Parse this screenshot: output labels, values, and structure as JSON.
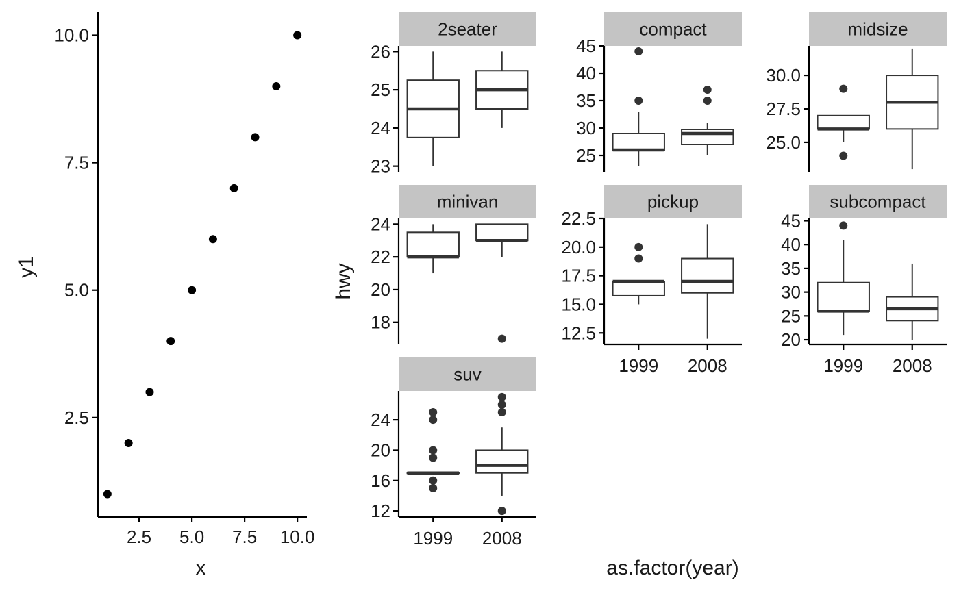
{
  "chart_data": [
    {
      "type": "scatter",
      "xlabel": "x",
      "ylabel": "y1",
      "x": [
        1,
        2,
        3,
        4,
        5,
        6,
        7,
        8,
        9,
        10
      ],
      "y": [
        1,
        2,
        3,
        4,
        5,
        6,
        7,
        8,
        9,
        10
      ],
      "xlim": [
        0.55,
        10.45
      ],
      "ylim": [
        0.55,
        10.45
      ],
      "xticks": [
        2.5,
        5.0,
        7.5,
        10.0
      ],
      "xtick_labels": [
        "2.5",
        "5.0",
        "7.5",
        "10.0"
      ],
      "yticks": [
        2.5,
        5.0,
        7.5,
        10.0
      ],
      "ytick_labels": [
        "2.5",
        "5.0",
        "7.5",
        "10.0"
      ],
      "point_color": "#000000",
      "grid": false
    },
    {
      "type": "box",
      "xlabel": "as.factor(year)",
      "ylabel": "hwy",
      "categories": [
        "1999",
        "2008"
      ],
      "box_color": "#333333",
      "strip_fill": "#c4c4c4",
      "grid": false,
      "facets": [
        {
          "label": "2seater",
          "ylim": [
            22.85,
            26.15
          ],
          "yticks": [
            23,
            24,
            25,
            26
          ],
          "ytick_labels": [
            "23",
            "24",
            "25",
            "26"
          ],
          "boxes": [
            {
              "q1": 23.75,
              "median": 24.5,
              "q3": 25.25,
              "low": 23,
              "high": 26,
              "outliers": []
            },
            {
              "q1": 24.5,
              "median": 25,
              "q3": 25.5,
              "low": 24,
              "high": 26,
              "outliers": []
            }
          ]
        },
        {
          "label": "compact",
          "ylim": [
            22.0,
            45.0
          ],
          "yticks": [
            25,
            30,
            35,
            40,
            45
          ],
          "ytick_labels": [
            "25",
            "30",
            "35",
            "40",
            "45"
          ],
          "boxes": [
            {
              "q1": 26,
              "median": 26,
              "q3": 29,
              "low": 23,
              "high": 33,
              "outliers": [
                35,
                44
              ]
            },
            {
              "q1": 27,
              "median": 29,
              "q3": 29.75,
              "low": 25,
              "high": 31,
              "outliers": [
                35,
                37
              ]
            }
          ]
        },
        {
          "label": "midsize",
          "ylim": [
            22.8,
            32.2
          ],
          "yticks": [
            25.0,
            27.5,
            30.0
          ],
          "ytick_labels": [
            "25.0",
            "27.5",
            "30.0"
          ],
          "boxes": [
            {
              "q1": 26,
              "median": 26,
              "q3": 27,
              "low": 25,
              "high": 27,
              "outliers": [
                24,
                29
              ]
            },
            {
              "q1": 26,
              "median": 28,
              "q3": 30,
              "low": 23,
              "high": 32,
              "outliers": []
            }
          ]
        },
        {
          "label": "minivan",
          "ylim": [
            16.65,
            24.35
          ],
          "yticks": [
            18,
            20,
            22,
            24
          ],
          "ytick_labels": [
            "18",
            "20",
            "22",
            "24"
          ],
          "boxes": [
            {
              "q1": 22,
              "median": 22,
              "q3": 23.5,
              "low": 21,
              "high": 24,
              "outliers": []
            },
            {
              "q1": 23,
              "median": 23,
              "q3": 24,
              "low": 22,
              "high": 24,
              "outliers": [
                17
              ]
            }
          ]
        },
        {
          "label": "pickup",
          "ylim": [
            11.5,
            22.5
          ],
          "yticks": [
            12.5,
            15.0,
            17.5,
            20.0,
            22.5
          ],
          "ytick_labels": [
            "12.5",
            "15.0",
            "17.5",
            "20.0",
            "22.5"
          ],
          "boxes": [
            {
              "q1": 15.75,
              "median": 17,
              "q3": 17,
              "low": 15,
              "high": 17,
              "outliers": [
                19,
                20
              ]
            },
            {
              "q1": 16,
              "median": 17,
              "q3": 19,
              "low": 12,
              "high": 22,
              "outliers": []
            }
          ]
        },
        {
          "label": "subcompact",
          "ylim": [
            19.0,
            45.5
          ],
          "yticks": [
            20,
            25,
            30,
            35,
            40,
            45
          ],
          "ytick_labels": [
            "20",
            "25",
            "30",
            "35",
            "40",
            "45"
          ],
          "boxes": [
            {
              "q1": 26,
              "median": 26,
              "q3": 32,
              "low": 21,
              "high": 41,
              "outliers": [
                44
              ]
            },
            {
              "q1": 24,
              "median": 26.5,
              "q3": 29,
              "low": 20,
              "high": 36,
              "outliers": []
            }
          ]
        },
        {
          "label": "suv",
          "ylim": [
            11.2,
            27.8
          ],
          "yticks": [
            12,
            16,
            20,
            24
          ],
          "ytick_labels": [
            "12",
            "16",
            "20",
            "24"
          ],
          "boxes": [
            {
              "q1": 17,
              "median": 17,
              "q3": 17,
              "low": 17,
              "high": 17,
              "outliers": [
                15,
                16,
                19,
                20,
                24,
                25
              ]
            },
            {
              "q1": 17,
              "median": 18,
              "q3": 20,
              "low": 14,
              "high": 23,
              "outliers": [
                12,
                25,
                26,
                27
              ]
            }
          ]
        }
      ]
    }
  ]
}
